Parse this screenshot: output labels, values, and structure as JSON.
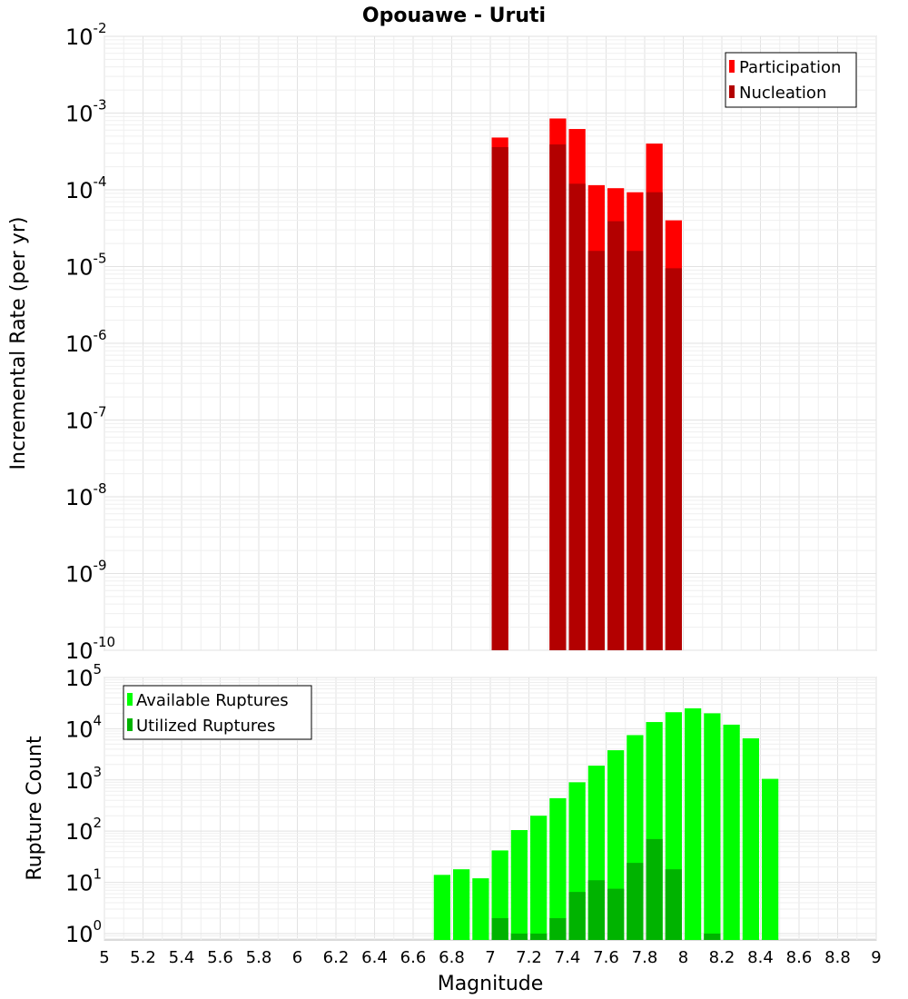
{
  "title": "Opouawe - Uruti",
  "xlabel": "Magnitude",
  "xticks": [
    "5",
    "5.2",
    "5.4",
    "5.6",
    "5.8",
    "6",
    "6.2",
    "6.4",
    "6.6",
    "6.8",
    "7",
    "7.2",
    "7.4",
    "7.6",
    "7.8",
    "8",
    "8.2",
    "8.4",
    "8.6",
    "8.8",
    "9"
  ],
  "chart_data": [
    {
      "type": "bar",
      "ylabel": "Incremental Rate (per yr)",
      "yscale": "log",
      "ylim": [
        1e-10,
        0.01
      ],
      "xlim": [
        5,
        9
      ],
      "ytick_base": "10",
      "ytick_exponents": [
        "-10",
        "-9",
        "-8",
        "-7",
        "-6",
        "-5",
        "-4",
        "-3",
        "-2"
      ],
      "legend_position": "top-right",
      "grid": true,
      "series": [
        {
          "name": "Participation",
          "color": "#ff0000",
          "x": [
            7.05,
            7.35,
            7.45,
            7.55,
            7.65,
            7.75,
            7.85,
            7.95
          ],
          "values": [
            0.00048,
            0.00085,
            0.00062,
            0.000115,
            0.000105,
            9.3e-05,
            0.0004,
            4e-05
          ]
        },
        {
          "name": "Nucleation",
          "color": "#b30000",
          "x": [
            7.05,
            7.35,
            7.45,
            7.55,
            7.65,
            7.75,
            7.85,
            7.95
          ],
          "values": [
            0.00036,
            0.00039,
            0.00012,
            1.6e-05,
            3.9e-05,
            1.6e-05,
            9.3e-05,
            9.5e-06
          ]
        }
      ]
    },
    {
      "type": "bar",
      "ylabel": "Rupture Count",
      "yscale": "log",
      "ylim": [
        0.75,
        100000.0
      ],
      "xlim": [
        5,
        9
      ],
      "ytick_base": "10",
      "ytick_exponents": [
        "0",
        "1",
        "2",
        "3",
        "4",
        "5"
      ],
      "legend_position": "top-left",
      "grid": true,
      "series": [
        {
          "name": "Available Ruptures",
          "color": "#00ff00",
          "x": [
            6.75,
            6.85,
            6.95,
            7.05,
            7.15,
            7.25,
            7.35,
            7.45,
            7.55,
            7.65,
            7.75,
            7.85,
            7.95,
            8.05,
            8.15,
            8.25,
            8.35,
            8.45
          ],
          "values": [
            14,
            18,
            12,
            42,
            105,
            200,
            440,
            900,
            1900,
            3800,
            7500,
            13500,
            21000,
            25000,
            20000,
            12000,
            6500,
            1050
          ]
        },
        {
          "name": "Utilized Ruptures",
          "color": "#00b300",
          "x": [
            7.05,
            7.15,
            7.25,
            7.35,
            7.45,
            7.55,
            7.65,
            7.75,
            7.85,
            7.95,
            8.15
          ],
          "values": [
            2,
            1,
            1,
            2,
            6.5,
            11,
            7.5,
            24,
            70,
            18,
            1
          ]
        }
      ]
    }
  ]
}
